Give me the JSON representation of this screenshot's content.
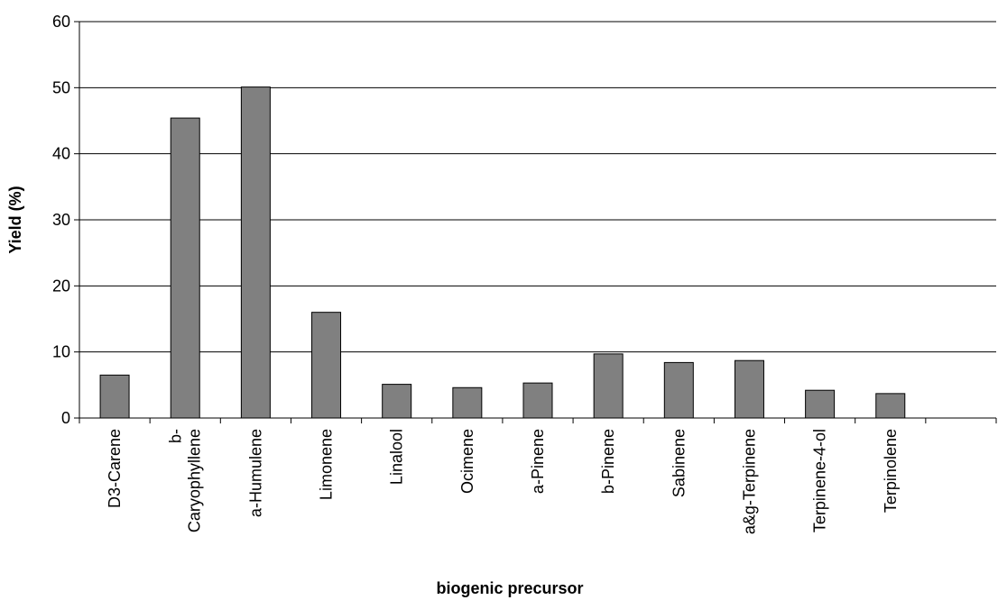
{
  "chart_data": {
    "type": "bar",
    "title": "",
    "xlabel": "biogenic precursor",
    "ylabel": "Yield (%)",
    "ylim": [
      0,
      60
    ],
    "yticks": [
      0,
      10,
      20,
      30,
      40,
      50,
      60
    ],
    "grid": true,
    "legend": "none",
    "bar_color": "#808080",
    "categories": [
      [
        "D3-Carene"
      ],
      [
        "b-",
        "Caryophyllene"
      ],
      [
        "a-Humulene"
      ],
      [
        "Limonene"
      ],
      [
        "Linalool"
      ],
      [
        "Ocimene"
      ],
      [
        "a-Pinene"
      ],
      [
        "b-Pinene"
      ],
      [
        "Sabinene"
      ],
      [
        "a&g-Terpinene"
      ],
      [
        "Terpinene-4-ol"
      ],
      [
        "Terpinolene"
      ]
    ],
    "values": [
      6.5,
      45.4,
      50.1,
      16.0,
      5.1,
      4.6,
      5.3,
      9.7,
      8.4,
      8.7,
      4.2,
      3.7
    ],
    "extra_empty_slot": true
  }
}
